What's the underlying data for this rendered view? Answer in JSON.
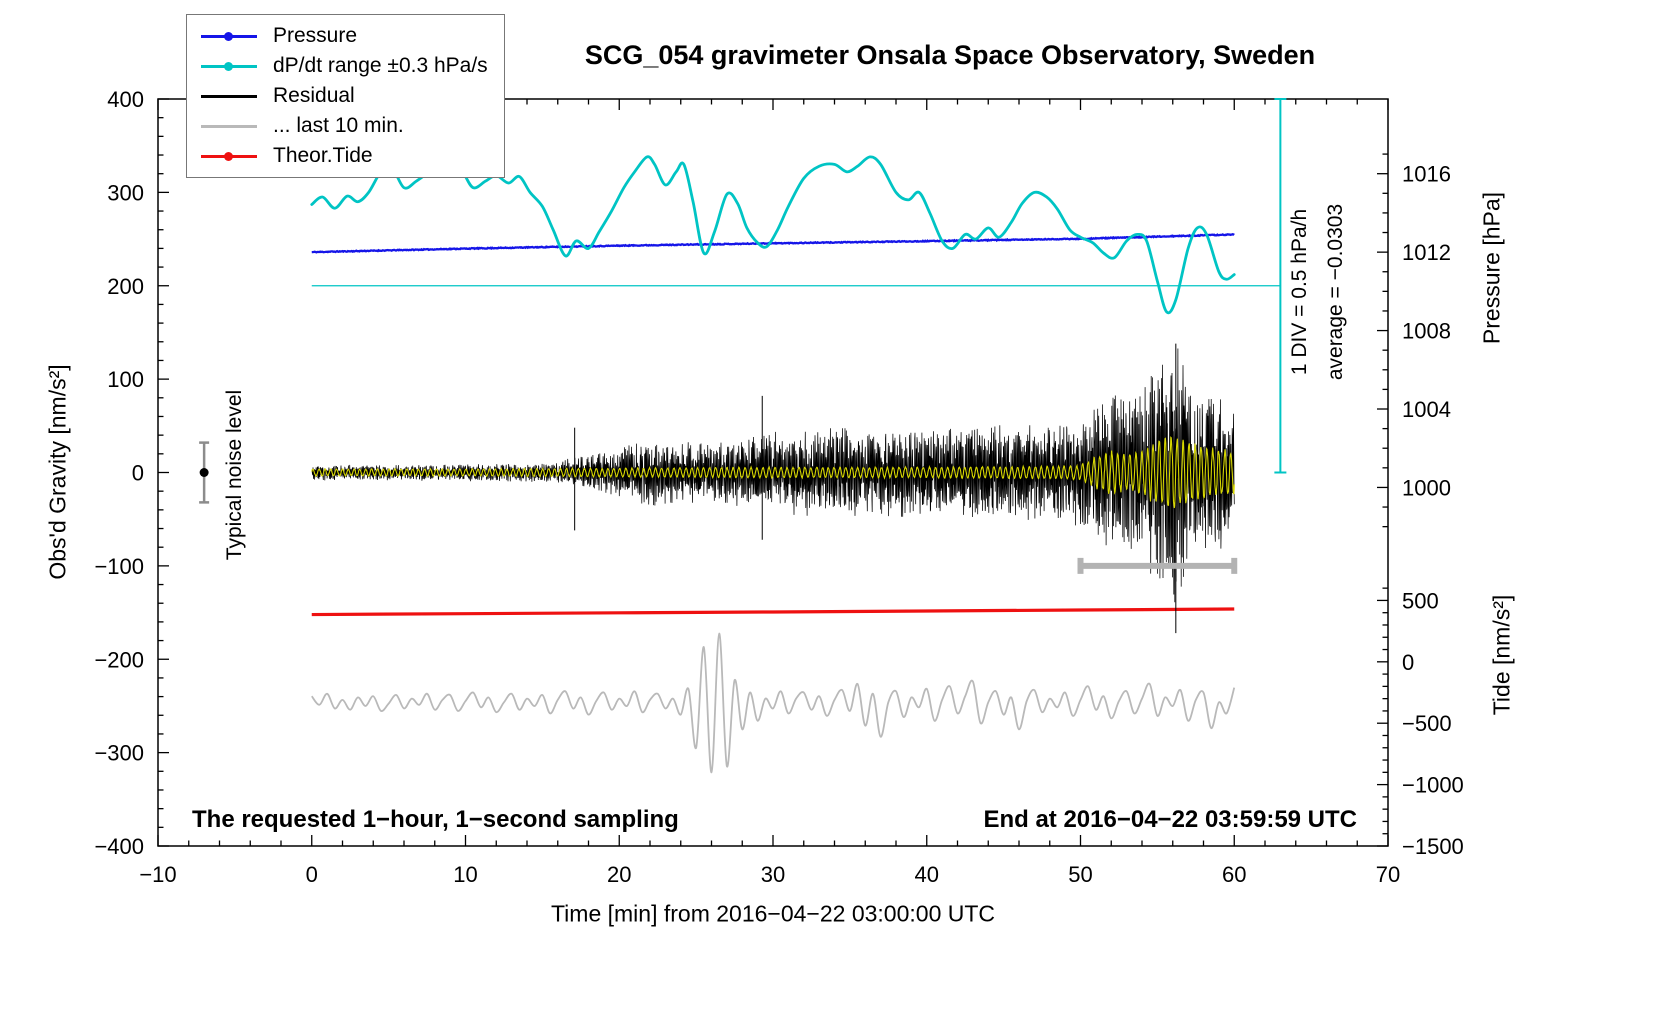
{
  "title": "SCG_054 gravimeter Onsala Space Observatory, Sweden",
  "chart_data": {
    "type": "line",
    "title": "SCG_054 gravimeter Onsala Space Observatory, Sweden",
    "grid": false,
    "x_axis": {
      "label": "Time [min] from 2016−04−22 03:00:00 UTC",
      "min": -10,
      "max": 70,
      "major_ticks": [
        -10,
        0,
        10,
        20,
        30,
        40,
        50,
        60,
        70
      ],
      "minor_step": 2
    },
    "y_axis_left": {
      "label": "Obs'd Gravity [nm/s²]",
      "min": -400,
      "max": 400,
      "major_ticks": [
        -400,
        -300,
        -200,
        -100,
        0,
        100,
        200,
        300,
        400
      ],
      "minor_step": 20
    },
    "y_axis_pressure": {
      "label": "Pressure [hPa]",
      "ticks": [
        1016,
        1012,
        1008,
        1004,
        1000
      ],
      "minor_step": 1,
      "minor_min": 998,
      "minor_max": 1017,
      "map_g_at_1012": 236,
      "map_g_per_hpa": 21
    },
    "y_axis_tide": {
      "label": "Tide [nm/s²]",
      "ticks": [
        500,
        0,
        -500,
        -1000,
        -1500
      ],
      "minor_step": 100,
      "minor_min": -1500,
      "minor_max": 600,
      "map_g_at_0": -202.75,
      "map_g_per_unit": 0.1315
    },
    "legend": {
      "position": "top-left",
      "items": [
        {
          "label": "Pressure",
          "color": "#1515e8",
          "marker": true
        },
        {
          "label": "dP/dt range ±0.3 hPa/s",
          "color": "#00c4c4",
          "marker": true
        },
        {
          "label": "Residual",
          "color": "#000000",
          "marker": false
        },
        {
          "label": "... last 10 min.",
          "color": "#b9b9b9",
          "marker": false
        },
        {
          "label": "Theor.Tide",
          "color": "#ee1111",
          "marker": true
        }
      ]
    },
    "series": {
      "pressure": {
        "name": "Pressure",
        "color": "#1515e8",
        "units": "hPa",
        "points": [
          [
            0,
            1012.0
          ],
          [
            10,
            1012.18
          ],
          [
            20,
            1012.33
          ],
          [
            30,
            1012.45
          ],
          [
            40,
            1012.56
          ],
          [
            50,
            1012.68
          ],
          [
            60,
            1012.9
          ]
        ]
      },
      "dpdt": {
        "name": "dP/dt range ±0.3 hPa/s",
        "color": "#00c4c4",
        "units": "gravity-axis-units",
        "points": [
          [
            0,
            287
          ],
          [
            0.7,
            295
          ],
          [
            1.5,
            283
          ],
          [
            2.3,
            296
          ],
          [
            3,
            290
          ],
          [
            3.7,
            300
          ],
          [
            4.5,
            322
          ],
          [
            5.2,
            327
          ],
          [
            6,
            305
          ],
          [
            6.8,
            312
          ],
          [
            7.5,
            320
          ],
          [
            8.5,
            330
          ],
          [
            9,
            333
          ],
          [
            9.8,
            322
          ],
          [
            10.5,
            305
          ],
          [
            11.3,
            312
          ],
          [
            12,
            318
          ],
          [
            12.8,
            310
          ],
          [
            13.5,
            317
          ],
          [
            14.2,
            300
          ],
          [
            15,
            285
          ],
          [
            15.7,
            260
          ],
          [
            16.5,
            232
          ],
          [
            17.2,
            248
          ],
          [
            18,
            240
          ],
          [
            18.7,
            258
          ],
          [
            19.5,
            280
          ],
          [
            20.3,
            305
          ],
          [
            21,
            322
          ],
          [
            21.8,
            338
          ],
          [
            22.3,
            330
          ],
          [
            23,
            308
          ],
          [
            23.7,
            322
          ],
          [
            24.2,
            330
          ],
          [
            24.8,
            290
          ],
          [
            25.5,
            235
          ],
          [
            26.2,
            258
          ],
          [
            27,
            298
          ],
          [
            27.7,
            288
          ],
          [
            28.3,
            262
          ],
          [
            29,
            246
          ],
          [
            29.6,
            242
          ],
          [
            30.3,
            260
          ],
          [
            31,
            285
          ],
          [
            32,
            315
          ],
          [
            33,
            328
          ],
          [
            34,
            330
          ],
          [
            34.8,
            322
          ],
          [
            35.5,
            328
          ],
          [
            36.3,
            338
          ],
          [
            37,
            330
          ],
          [
            38,
            300
          ],
          [
            38.8,
            292
          ],
          [
            39.5,
            300
          ],
          [
            40.2,
            278
          ],
          [
            41,
            248
          ],
          [
            41.7,
            240
          ],
          [
            42.5,
            255
          ],
          [
            43.2,
            250
          ],
          [
            44,
            262
          ],
          [
            44.7,
            252
          ],
          [
            45.5,
            268
          ],
          [
            46.2,
            288
          ],
          [
            47,
            300
          ],
          [
            47.8,
            295
          ],
          [
            48.5,
            282
          ],
          [
            49.3,
            260
          ],
          [
            50,
            252
          ],
          [
            50.8,
            246
          ],
          [
            51.5,
            235
          ],
          [
            52.2,
            230
          ],
          [
            53,
            248
          ],
          [
            53.7,
            255
          ],
          [
            54.3,
            248
          ],
          [
            55,
            205
          ],
          [
            55.6,
            172
          ],
          [
            56.2,
            185
          ],
          [
            57,
            240
          ],
          [
            57.6,
            262
          ],
          [
            58.2,
            255
          ],
          [
            59,
            215
          ],
          [
            59.5,
            207
          ],
          [
            60,
            212
          ]
        ]
      },
      "residual": {
        "name": "Residual",
        "color": "#000000",
        "units": "nm/s²",
        "noise_envelope": [
          [
            0,
            7
          ],
          [
            5,
            7
          ],
          [
            10,
            8
          ],
          [
            14,
            8
          ],
          [
            16,
            9
          ],
          [
            17,
            14
          ],
          [
            18,
            16
          ],
          [
            20,
            22
          ],
          [
            22,
            30
          ],
          [
            24,
            28
          ],
          [
            26,
            26
          ],
          [
            28,
            30
          ],
          [
            29,
            34
          ],
          [
            30,
            36
          ],
          [
            32,
            38
          ],
          [
            34,
            40
          ],
          [
            36,
            38
          ],
          [
            38,
            40
          ],
          [
            40,
            42
          ],
          [
            42,
            40
          ],
          [
            44,
            44
          ],
          [
            46,
            46
          ],
          [
            48,
            42
          ],
          [
            50,
            48
          ],
          [
            51,
            60
          ],
          [
            52,
            72
          ],
          [
            53,
            66
          ],
          [
            54,
            80
          ],
          [
            55,
            96
          ],
          [
            56,
            120
          ],
          [
            56.5,
            110
          ],
          [
            57,
            90
          ],
          [
            57.5,
            70
          ],
          [
            58,
            85
          ],
          [
            59,
            70
          ],
          [
            60,
            55
          ]
        ],
        "spikes": [
          [
            17.1,
            -62,
            48
          ],
          [
            29.3,
            -72,
            82
          ],
          [
            56.2,
            -172,
            138
          ]
        ]
      },
      "residual_filtered": {
        "name": "Residual (filtered overlay)",
        "color": "#d8d800",
        "units": "nm/s²",
        "noise_envelope": [
          [
            0,
            4
          ],
          [
            10,
            4
          ],
          [
            20,
            5
          ],
          [
            30,
            6
          ],
          [
            40,
            6
          ],
          [
            48,
            7
          ],
          [
            50,
            8
          ],
          [
            51,
            18
          ],
          [
            52,
            24
          ],
          [
            53,
            20
          ],
          [
            54,
            26
          ],
          [
            55,
            36
          ],
          [
            56,
            42
          ],
          [
            57,
            34
          ],
          [
            58,
            30
          ],
          [
            59,
            26
          ],
          [
            60,
            24
          ]
        ]
      },
      "tide": {
        "name": "Theor.Tide",
        "color": "#ee1111",
        "units": "nm/s² (tide axis)",
        "points": [
          [
            0,
            385
          ],
          [
            10,
            392
          ],
          [
            20,
            399
          ],
          [
            30,
            406
          ],
          [
            40,
            414
          ],
          [
            50,
            422
          ],
          [
            60,
            430
          ]
        ]
      },
      "last10": {
        "name": "... last 10 min.",
        "color": "#b9b9b9",
        "units": "nm/s² (tide axis)",
        "x_start": 0,
        "x_step": 0.5,
        "values": [
          -280,
          -350,
          -260,
          -380,
          -310,
          -390,
          -290,
          -360,
          -280,
          -400,
          -340,
          -270,
          -380,
          -300,
          -350,
          -260,
          -390,
          -310,
          -270,
          -400,
          -320,
          -250,
          -370,
          -290,
          -410,
          -330,
          -260,
          -390,
          -300,
          -360,
          -270,
          -420,
          -310,
          -240,
          -380,
          -290,
          -430,
          -320,
          -250,
          -390,
          -300,
          -360,
          -240,
          -410,
          -310,
          -260,
          -380,
          -300,
          -430,
          -220,
          -700,
          120,
          -900,
          230,
          -850,
          -150,
          -550,
          -250,
          -480,
          -300,
          -380,
          -240,
          -420,
          -300,
          -250,
          -390,
          -280,
          -440,
          -310,
          -230,
          -400,
          -180,
          -520,
          -260,
          -610,
          -330,
          -240,
          -450,
          -290,
          -370,
          -220,
          -480,
          -310,
          -200,
          -420,
          -280,
          -160,
          -500,
          -330,
          -240,
          -430,
          -290,
          -550,
          -320,
          -230,
          -410,
          -300,
          -370,
          -250,
          -440,
          -310,
          -200,
          -390,
          -280,
          -460,
          -320,
          -240,
          -420,
          -300,
          -180,
          -440,
          -290,
          -360,
          -230,
          -480,
          -310,
          -250,
          -540,
          -330,
          -420,
          -210
        ]
      }
    },
    "annotations": {
      "div_scale": "1 DIV = 0.5 hPa/h",
      "average": "average = −0.0303",
      "noise_label": "Typical noise level",
      "refline": {
        "y_gravity": 200,
        "x_from": 0,
        "x_to": 63,
        "color": "#00c4c4"
      },
      "div_bar": {
        "x": 63,
        "g_top": 400,
        "g_bottom": 0,
        "color": "#00c4c4"
      },
      "window_bar": {
        "x_from": 50,
        "x_to": 60,
        "g": -100,
        "color": "#b3b3b3"
      },
      "noise_marker": {
        "x": -7,
        "g": 0,
        "half_range": 32,
        "bar_color": "#8c8c8c",
        "dot_color": "#000000"
      }
    },
    "footer_left": "The requested 1−hour, 1−second sampling",
    "footer_right": "End at 2016−04−22 03:59:59 UTC"
  }
}
